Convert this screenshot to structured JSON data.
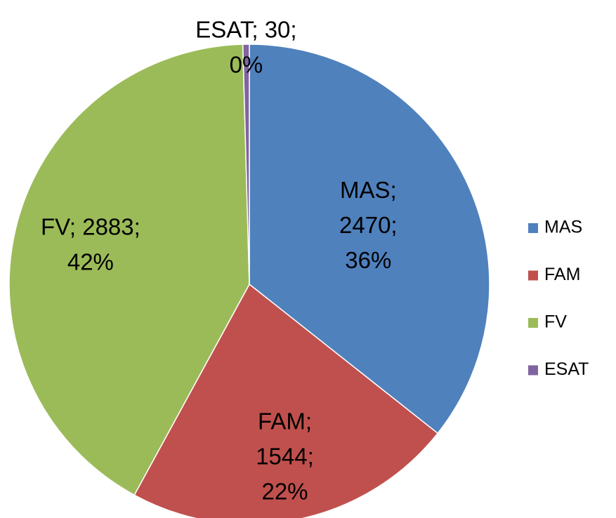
{
  "chart_data": {
    "type": "pie",
    "categories": [
      "MAS",
      "FAM",
      "FV",
      "ESAT"
    ],
    "values": [
      2470,
      1544,
      2883,
      30
    ],
    "percents": [
      36,
      22,
      42,
      0
    ],
    "value_labels": [
      [
        "MAS;",
        "2470;",
        "36%"
      ],
      [
        "FAM;",
        "1544;",
        "22%"
      ],
      [
        "FV; 2883;",
        "42%"
      ],
      [
        "ESAT; 30;",
        "0%"
      ]
    ],
    "colors": [
      "#4f81bd",
      "#c0504d",
      "#9bbb59",
      "#8064a2"
    ],
    "legend": "right"
  }
}
